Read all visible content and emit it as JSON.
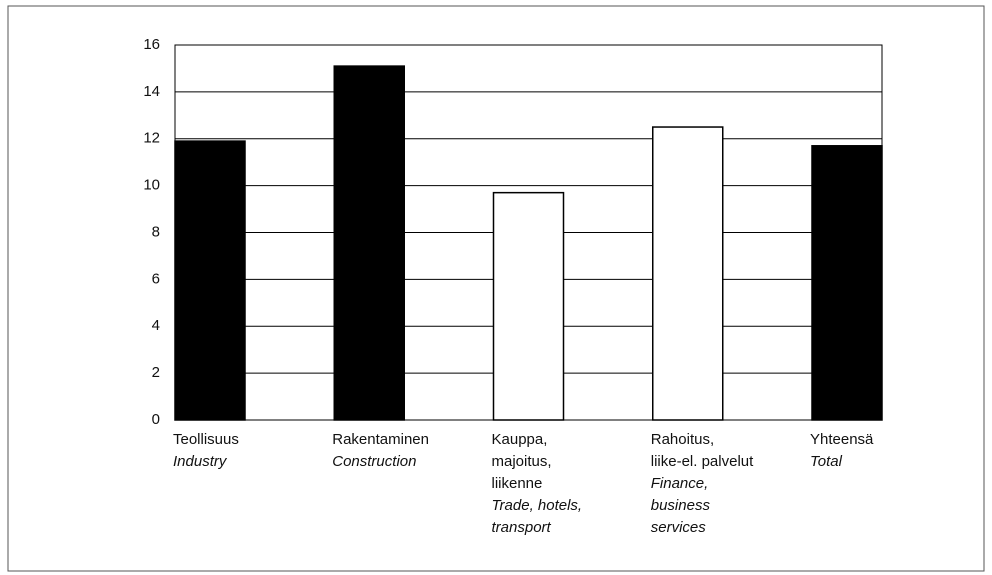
{
  "chart_data": {
    "type": "bar",
    "categories": [
      {
        "fi": [
          "Teollisuus"
        ],
        "en": [
          "Industry"
        ]
      },
      {
        "fi": [
          "Rakentaminen"
        ],
        "en": [
          "Construction"
        ]
      },
      {
        "fi": [
          "Kauppa,",
          "majoitus,",
          "liikenne"
        ],
        "en": [
          "Trade, hotels,",
          "transport"
        ]
      },
      {
        "fi": [
          "Rahoitus,",
          "liike-el. palvelut"
        ],
        "en": [
          "Finance,",
          "business",
          "services"
        ]
      },
      {
        "fi": [
          "Yhteensä"
        ],
        "en": [
          "Total"
        ]
      }
    ],
    "values": [
      11.9,
      15.1,
      9.7,
      12.5,
      11.7
    ],
    "colors": [
      "#000000",
      "#000000",
      "#ffffff",
      "#ffffff",
      "#000000"
    ],
    "ylim": [
      0,
      16
    ],
    "yticks": [
      0,
      2,
      4,
      6,
      8,
      10,
      12,
      14,
      16
    ],
    "grid": true
  }
}
